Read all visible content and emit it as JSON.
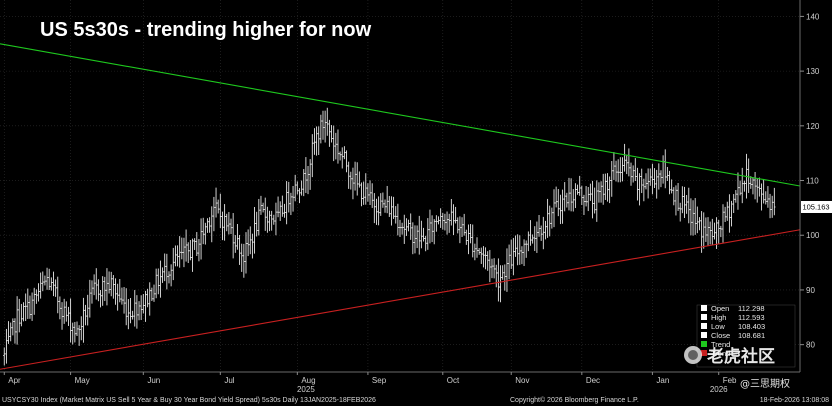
{
  "chart_data": {
    "type": "ohlc",
    "title": "US 5s30s - trending higher for now",
    "ylim": [
      75,
      143
    ],
    "y_ticks": [
      80,
      90,
      100,
      110,
      120,
      130,
      140
    ],
    "y_tick_labels": [
      "80",
      "90",
      "100",
      "110",
      "120",
      "130",
      "140"
    ],
    "x_labels": [
      {
        "label": "Apr",
        "t": 0
      },
      {
        "label": "May",
        "t": 31
      },
      {
        "label": "Jun",
        "t": 65
      },
      {
        "label": "Jul",
        "t": 101
      },
      {
        "label": "Aug",
        "t": 137
      },
      {
        "label": "2025",
        "t": 141
      },
      {
        "label": "Sep",
        "t": 170
      },
      {
        "label": "Oct",
        "t": 205
      },
      {
        "label": "Nov",
        "t": 237
      },
      {
        "label": "Dec",
        "t": 270
      },
      {
        "label": "Jan",
        "t": 303
      },
      {
        "label": "Feb",
        "t": 334
      },
      {
        "label": "2026",
        "t": 334
      }
    ],
    "last_price": 105.163,
    "last_price_label": "105.163",
    "trend_lines": [
      {
        "color": "#1ec81e",
        "from": {
          "t": -2,
          "y": 135
        },
        "to": {
          "t": 372,
          "y": 109
        }
      },
      {
        "color": "#c82020",
        "from": {
          "t": -2,
          "y": 75.5
        },
        "to": {
          "t": 372,
          "y": 101
        }
      }
    ],
    "legend": [
      {
        "label": "Open",
        "value": "112.298"
      },
      {
        "label": "High",
        "value": "112.593"
      },
      {
        "label": "Low",
        "value": "108.403"
      },
      {
        "label": "Close",
        "value": "108.681"
      },
      {
        "label": "Trend",
        "value": ""
      },
      {
        "label": "Trend",
        "value": ""
      }
    ],
    "anchors": [
      {
        "t": 0,
        "y": 78
      },
      {
        "t": 6,
        "y": 85
      },
      {
        "t": 12,
        "y": 87
      },
      {
        "t": 20,
        "y": 92
      },
      {
        "t": 28,
        "y": 86
      },
      {
        "t": 34,
        "y": 82
      },
      {
        "t": 42,
        "y": 90
      },
      {
        "t": 50,
        "y": 91
      },
      {
        "t": 58,
        "y": 86
      },
      {
        "t": 66,
        "y": 88
      },
      {
        "t": 74,
        "y": 93
      },
      {
        "t": 82,
        "y": 96
      },
      {
        "t": 90,
        "y": 98
      },
      {
        "t": 98,
        "y": 105
      },
      {
        "t": 106,
        "y": 101
      },
      {
        "t": 112,
        "y": 96
      },
      {
        "t": 120,
        "y": 104
      },
      {
        "t": 128,
        "y": 103
      },
      {
        "t": 134,
        "y": 108
      },
      {
        "t": 140,
        "y": 110
      },
      {
        "t": 146,
        "y": 118
      },
      {
        "t": 150,
        "y": 121
      },
      {
        "t": 154,
        "y": 117
      },
      {
        "t": 160,
        "y": 113
      },
      {
        "t": 165,
        "y": 109
      },
      {
        "t": 172,
        "y": 106
      },
      {
        "t": 180,
        "y": 105
      },
      {
        "t": 188,
        "y": 101
      },
      {
        "t": 196,
        "y": 99
      },
      {
        "t": 204,
        "y": 104
      },
      {
        "t": 212,
        "y": 102
      },
      {
        "t": 220,
        "y": 98
      },
      {
        "t": 227,
        "y": 95
      },
      {
        "t": 231,
        "y": 92
      },
      {
        "t": 236,
        "y": 95
      },
      {
        "t": 244,
        "y": 99
      },
      {
        "t": 252,
        "y": 102
      },
      {
        "t": 260,
        "y": 106
      },
      {
        "t": 268,
        "y": 108
      },
      {
        "t": 276,
        "y": 106
      },
      {
        "t": 284,
        "y": 111
      },
      {
        "t": 290,
        "y": 113
      },
      {
        "t": 296,
        "y": 109
      },
      {
        "t": 302,
        "y": 110
      },
      {
        "t": 308,
        "y": 112
      },
      {
        "t": 314,
        "y": 107
      },
      {
        "t": 320,
        "y": 104
      },
      {
        "t": 326,
        "y": 101
      },
      {
        "t": 332,
        "y": 100
      },
      {
        "t": 338,
        "y": 104
      },
      {
        "t": 344,
        "y": 109
      },
      {
        "t": 348,
        "y": 111
      },
      {
        "t": 352,
        "y": 108
      },
      {
        "t": 356,
        "y": 107
      },
      {
        "t": 360,
        "y": 105.2
      }
    ],
    "footer_left": "USYCSY30 Index (Market Matrix US Sell 5 Year & Buy 30 Year Bond Yield Spread) 5s30s Daily 13JAN2025-18FEB2026",
    "footer_center": "Copyright© 2026 Bloomberg Finance L.P.",
    "footer_right": "18-Feb-2026 13:08:08"
  },
  "watermark": {
    "text": "老虎社区",
    "subtext": "@三思期权"
  }
}
